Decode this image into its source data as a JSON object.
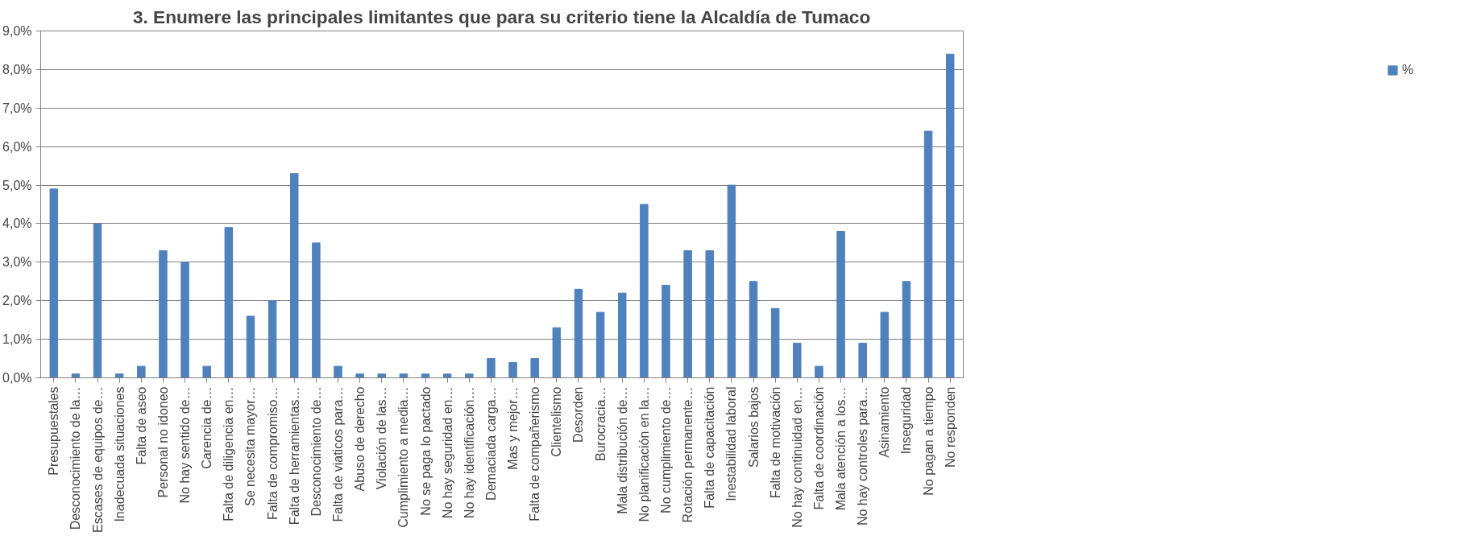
{
  "chart_data": {
    "type": "bar",
    "title": "3. Enumere las principales limitantes que para su criterio tiene la Alcaldía de Tumaco",
    "categories": [
      "Presupuestales",
      "Desconocimiento de la…",
      "Escases de equipos de…",
      "Inadecuada situaciones",
      "Falta de aseo",
      "Personal no idoneo",
      "No hay sentido de…",
      "Carencia de…",
      "Falta de diligencia en…",
      "Se necesita mayor…",
      "Falta de compromiso…",
      "Falta de herramientas…",
      "Desconocimiento de…",
      "Falta de viaticos para…",
      "Abuso de derecho",
      "Violación de las…",
      "Cumplimiento a media…",
      "No se paga lo pactado",
      "No hay seguridad en…",
      "No hay identificación…",
      "Demaciada carga…",
      "Mas y mejor…",
      "Falta de compañerismo",
      "Clientelismo",
      "Desorden",
      "Burocracia…",
      "Mala distribución de…",
      "No planificación en la…",
      "No cumplimiento de…",
      "Rotación permanente…",
      "Falta de capacitación",
      "Inestabilidad laboral",
      "Salarios bajos",
      "Falta de motivación",
      "No hay continuidad en…",
      "Falta de coordinación",
      "Mala atención a los…",
      "No hay controles para…",
      "Asinamiento",
      "Inseguridad",
      "No pagan a tiempo",
      "No responden"
    ],
    "series": [
      {
        "name": "%",
        "color": "#4f81bd",
        "values": [
          4.9,
          0.1,
          4.0,
          0.1,
          0.3,
          3.3,
          3.0,
          0.3,
          3.9,
          1.6,
          2.0,
          5.3,
          3.5,
          0.3,
          0.1,
          0.1,
          0.1,
          0.1,
          0.1,
          0.1,
          0.5,
          0.4,
          0.5,
          1.3,
          2.3,
          1.7,
          2.2,
          4.5,
          2.4,
          3.3,
          3.3,
          5.0,
          2.5,
          1.8,
          0.9,
          0.3,
          3.8,
          0.9,
          1.7,
          2.5,
          6.4,
          8.4
        ]
      }
    ],
    "ylim": [
      0,
      9
    ],
    "yticks": [
      {
        "value": 0,
        "label": "0,0%"
      },
      {
        "value": 1,
        "label": "1,0%"
      },
      {
        "value": 2,
        "label": "2,0%"
      },
      {
        "value": 3,
        "label": "3,0%"
      },
      {
        "value": 4,
        "label": "4,0%"
      },
      {
        "value": 5,
        "label": "5,0%"
      },
      {
        "value": 6,
        "label": "6,0%"
      },
      {
        "value": 7,
        "label": "7,0%"
      },
      {
        "value": 8,
        "label": "8,0%"
      },
      {
        "value": 9,
        "label": "9,0%"
      }
    ],
    "grid": "y",
    "legend": "right"
  }
}
